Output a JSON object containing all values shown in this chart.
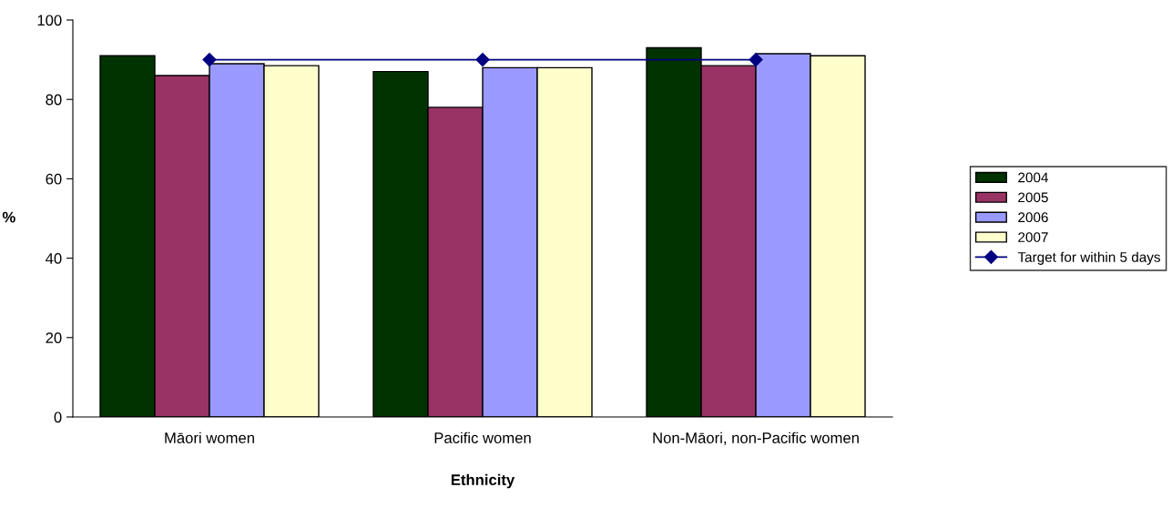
{
  "chart_data": {
    "type": "bar",
    "categories": [
      "Māori women",
      "Pacific women",
      "Non-Māori, non-Pacific women"
    ],
    "xlabel": "Ethnicity",
    "ylabel": "%",
    "ylim": [
      0,
      100
    ],
    "yticks": [
      0,
      20,
      40,
      60,
      80,
      100
    ],
    "grid": false,
    "legend": "right",
    "series": [
      {
        "name": "2004",
        "color": "#003300",
        "values": [
          91,
          87,
          93
        ]
      },
      {
        "name": "2005",
        "color": "#993366",
        "values": [
          86,
          78,
          88.5
        ]
      },
      {
        "name": "2006",
        "color": "#9999ff",
        "values": [
          89,
          88,
          91.5
        ]
      },
      {
        "name": "2007",
        "color": "#ffffcc",
        "values": [
          88.5,
          88,
          91
        ]
      },
      {
        "name": "Target for within 5 days",
        "type": "line",
        "color": "#000080",
        "marker": "diamond",
        "values": [
          90,
          90,
          90
        ]
      }
    ]
  }
}
